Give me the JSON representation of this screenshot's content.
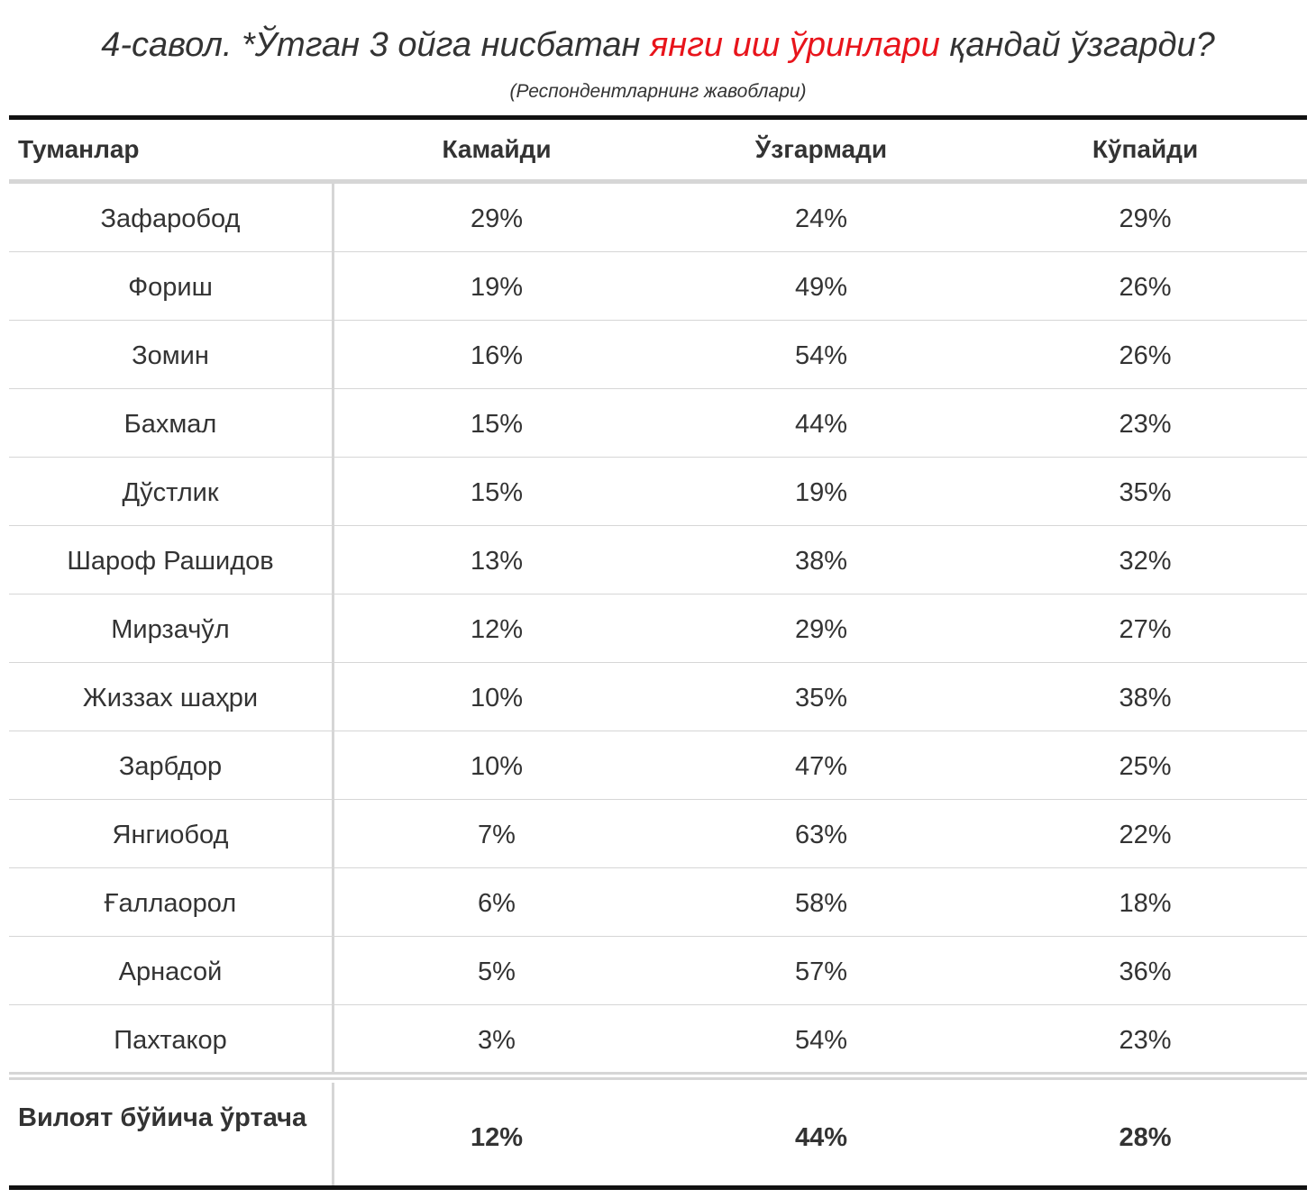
{
  "title": {
    "prefix": "4-савол. *Ўтган 3 ойга нисбатан ",
    "highlight": "янги иш ўринлари",
    "suffix": " қандай ўзгарди?",
    "accent_color": "#e8141b"
  },
  "subtitle": "(Респондентларнинг жавоблари)",
  "table": {
    "headers": [
      "Туманлар",
      "Камайди",
      "Ўзгармади",
      "Кўпайди"
    ],
    "rows": [
      [
        "Зафаробод",
        "29%",
        "24%",
        "29%"
      ],
      [
        "Фориш",
        "19%",
        "49%",
        "26%"
      ],
      [
        "Зомин",
        "16%",
        "54%",
        "26%"
      ],
      [
        "Бахмал",
        "15%",
        "44%",
        "23%"
      ],
      [
        "Дўстлик",
        "15%",
        "19%",
        "35%"
      ],
      [
        "Шароф Рашидов",
        "13%",
        "38%",
        "32%"
      ],
      [
        "Мирзачўл",
        "12%",
        "29%",
        "27%"
      ],
      [
        "Жиззах шаҳри",
        "10%",
        "35%",
        "38%"
      ],
      [
        "Зарбдор",
        "10%",
        "47%",
        "25%"
      ],
      [
        "Янгиобод",
        "7%",
        "63%",
        "22%"
      ],
      [
        "Ғаллаорол",
        "6%",
        "58%",
        "18%"
      ],
      [
        "Арнасой",
        "5%",
        "57%",
        "36%"
      ],
      [
        "Пахтакор",
        "3%",
        "54%",
        "23%"
      ]
    ],
    "footer": [
      "Вилоят бўйича ўртача",
      "12%",
      "44%",
      "28%"
    ]
  }
}
